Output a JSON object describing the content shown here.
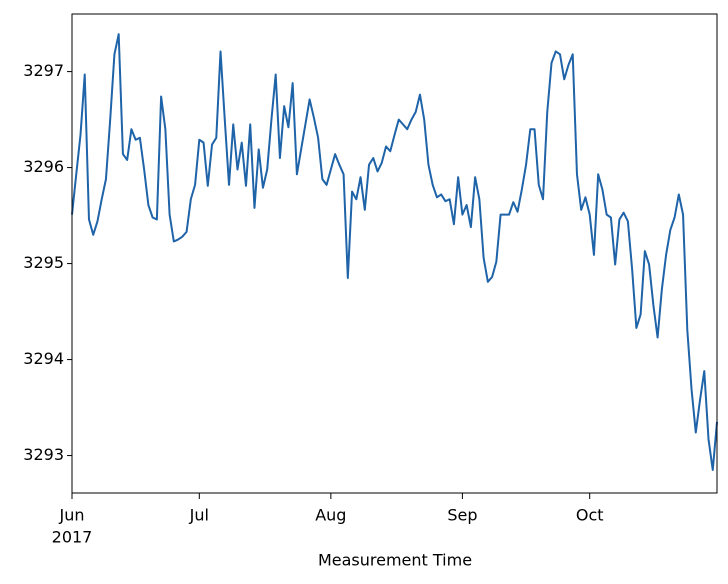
{
  "chart_data": {
    "type": "line",
    "x_label": "Measurement Time",
    "year_label": "2017",
    "categories": [
      "Jun",
      null,
      null,
      null,
      null,
      null,
      null,
      null,
      null,
      null,
      null,
      null,
      null,
      null,
      null,
      null,
      null,
      null,
      null,
      null,
      null,
      null,
      null,
      null,
      null,
      null,
      null,
      null,
      null,
      null,
      "Jul",
      null,
      null,
      null,
      null,
      null,
      null,
      null,
      null,
      null,
      null,
      null,
      null,
      null,
      null,
      null,
      null,
      null,
      null,
      null,
      null,
      null,
      null,
      null,
      null,
      null,
      null,
      null,
      null,
      null,
      null,
      "Aug",
      null,
      null,
      null,
      null,
      null,
      null,
      null,
      null,
      null,
      null,
      null,
      null,
      null,
      null,
      null,
      null,
      null,
      null,
      null,
      null,
      null,
      null,
      null,
      null,
      null,
      null,
      null,
      null,
      null,
      null,
      "Sep",
      null,
      null,
      null,
      null,
      null,
      null,
      null,
      null,
      null,
      null,
      null,
      null,
      null,
      null,
      null,
      null,
      null,
      null,
      null,
      null,
      null,
      null,
      null,
      null,
      null,
      null,
      null,
      null,
      null,
      "Oct",
      null,
      null,
      null,
      null,
      null,
      null,
      null,
      null,
      null,
      null,
      null,
      null,
      null,
      null,
      null,
      null,
      null,
      null,
      null,
      null,
      null,
      null,
      null,
      null,
      null,
      null,
      null,
      null,
      null,
      null
    ],
    "series": [
      {
        "color": "#1f63a8",
        "values": [
          3295.51,
          3295.93,
          3296.34,
          3296.97,
          3295.46,
          3295.3,
          3295.44,
          3295.67,
          3295.88,
          3296.5,
          3297.18,
          3297.39,
          3296.14,
          3296.08,
          3296.4,
          3296.29,
          3296.31,
          3295.98,
          3295.61,
          3295.48,
          3295.46,
          3296.74,
          3296.4,
          3295.51,
          3295.23,
          3295.25,
          3295.28,
          3295.33,
          3295.67,
          3295.82,
          3296.29,
          3296.26,
          3295.81,
          3296.24,
          3296.31,
          3297.21,
          3296.5,
          3295.82,
          3296.45,
          3295.98,
          3296.26,
          3295.81,
          3296.45,
          3295.58,
          3296.19,
          3295.79,
          3295.98,
          3296.5,
          3296.97,
          3296.1,
          3296.64,
          3296.42,
          3296.88,
          3295.93,
          3296.19,
          3296.45,
          3296.71,
          3296.52,
          3296.31,
          3295.88,
          3295.82,
          3295.98,
          3296.14,
          3296.03,
          3295.93,
          3294.85,
          3295.75,
          3295.67,
          3295.9,
          3295.56,
          3296.03,
          3296.1,
          3295.96,
          3296.05,
          3296.22,
          3296.17,
          3296.34,
          3296.5,
          3296.45,
          3296.4,
          3296.5,
          3296.58,
          3296.76,
          3296.5,
          3296.03,
          3295.82,
          3295.69,
          3295.72,
          3295.65,
          3295.67,
          3295.41,
          3295.9,
          3295.51,
          3295.61,
          3295.38,
          3295.9,
          3295.67,
          3295.06,
          3294.81,
          3294.86,
          3295.02,
          3295.51,
          3295.51,
          3295.51,
          3295.64,
          3295.54,
          3295.77,
          3296.03,
          3296.4,
          3296.4,
          3295.82,
          3295.67,
          3296.58,
          3297.09,
          3297.21,
          3297.18,
          3296.92,
          3297.07,
          3297.18,
          3295.93,
          3295.56,
          3295.69,
          3295.51,
          3295.09,
          3295.93,
          3295.77,
          3295.51,
          3295.48,
          3294.99,
          3295.46,
          3295.53,
          3295.44,
          3294.94,
          3294.33,
          3294.47,
          3295.13,
          3294.99,
          3294.57,
          3294.23,
          3294.73,
          3295.09,
          3295.35,
          3295.48,
          3295.72,
          3295.51,
          3294.31,
          3293.69,
          3293.24,
          3293.58,
          3293.88,
          3293.17,
          3292.85,
          3293.35
        ]
      }
    ],
    "ylim": [
      3292.61,
      3297.6
    ],
    "yticks": [
      3293,
      3294,
      3295,
      3296,
      3297
    ]
  }
}
